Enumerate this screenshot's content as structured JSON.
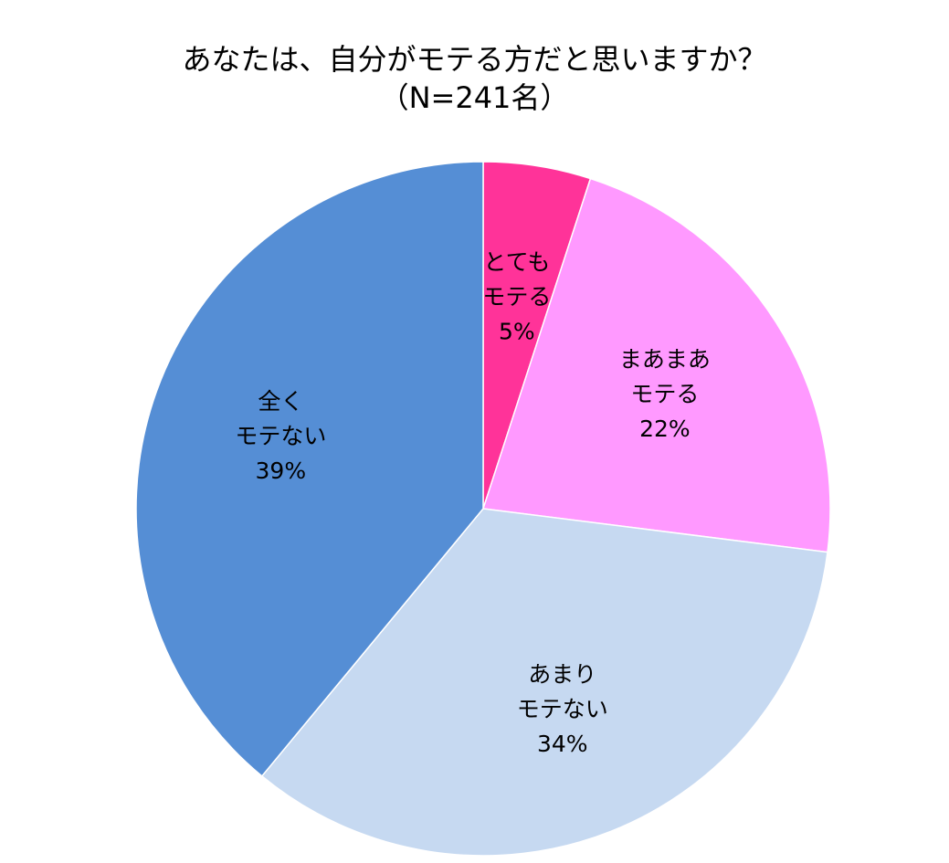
{
  "chart_data": {
    "type": "pie",
    "title": "あなたは、自分がモテる方だと思いますか？",
    "subtitle": "（N=241名）",
    "start_angle_deg": 0,
    "direction": "clockwise",
    "slices": [
      {
        "label_lines": [
          "とても",
          "モテる"
        ],
        "value": 5,
        "value_label": "5%",
        "color": "#FF3399"
      },
      {
        "label_lines": [
          "まあまあ",
          "モテる"
        ],
        "value": 22,
        "value_label": "22%",
        "color": "#FF99FF"
      },
      {
        "label_lines": [
          "あまり",
          "モテない"
        ],
        "value": 34,
        "value_label": "34%",
        "color": "#C6D9F1"
      },
      {
        "label_lines": [
          "全く",
          "モテない"
        ],
        "value": 39,
        "value_label": "39%",
        "color": "#558ED5"
      }
    ]
  }
}
